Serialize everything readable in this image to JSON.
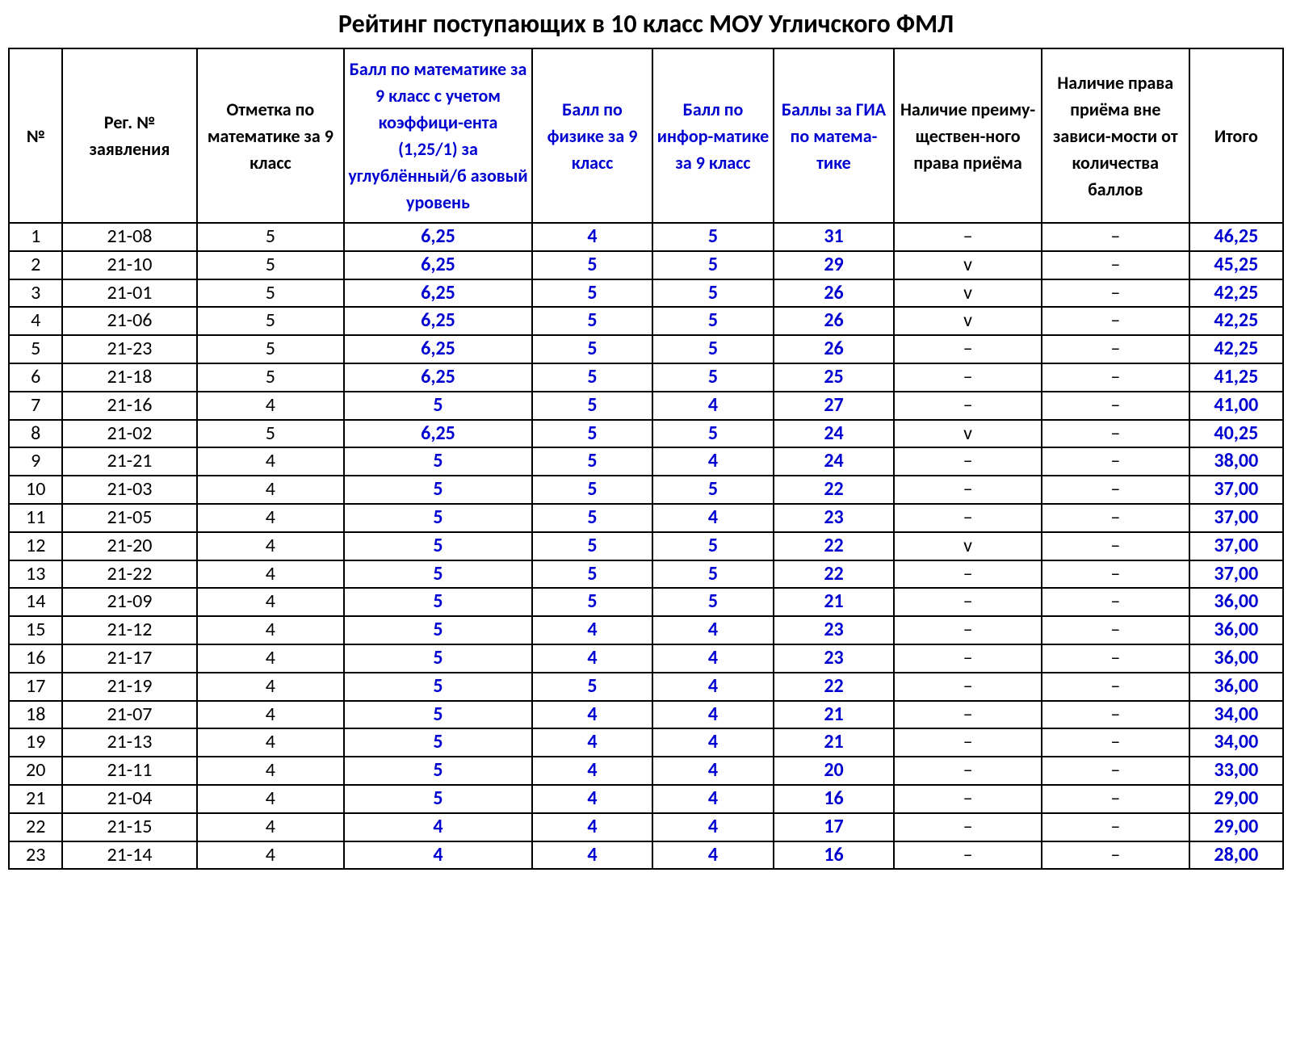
{
  "title": "Рейтинг поступающих в 10 класс МОУ Угличского ФМЛ",
  "colors": {
    "blue": "#0000d0",
    "black": "#000000",
    "border": "#000000",
    "background": "#ffffff"
  },
  "typography": {
    "title_fontsize": 32,
    "header_fontsize": 22,
    "cell_fontsize": 24,
    "font_family": "Calibri"
  },
  "columns": [
    {
      "key": "num",
      "label": "№",
      "color": "black",
      "width": "4%"
    },
    {
      "key": "reg",
      "label": "Рег. № заявления",
      "color": "black",
      "width": "10%"
    },
    {
      "key": "mark",
      "label": "Отметка по математике за 9 класс",
      "color": "black",
      "width": "11%"
    },
    {
      "key": "coef",
      "label": "Балл по математике за 9 класс с учетом коэффици-ента (1,25/1) за углублённый/б азовый уровень",
      "color": "blue",
      "width": "14%"
    },
    {
      "key": "phys",
      "label": "Балл по физике за 9 класс",
      "color": "blue",
      "width": "9%"
    },
    {
      "key": "inf",
      "label": "Балл по инфор-матике за 9 класс",
      "color": "blue",
      "width": "9%"
    },
    {
      "key": "gia",
      "label": "Баллы за ГИА по матема-тике",
      "color": "blue",
      "width": "9%"
    },
    {
      "key": "prio",
      "label": "Наличие преиму-ществен-ного права приёма",
      "color": "black",
      "width": "11%"
    },
    {
      "key": "right",
      "label": "Наличие права приёма вне зависи-мости от количества баллов",
      "color": "black",
      "width": "11%"
    },
    {
      "key": "total",
      "label": "Итого",
      "color": "black",
      "width": "7%"
    }
  ],
  "cell_styles": {
    "num": {
      "color": "black",
      "bold": false
    },
    "reg": {
      "color": "black",
      "bold": false
    },
    "mark": {
      "color": "black",
      "bold": false
    },
    "coef": {
      "color": "blue",
      "bold": true
    },
    "phys": {
      "color": "blue",
      "bold": true
    },
    "inf": {
      "color": "blue",
      "bold": true
    },
    "gia": {
      "color": "blue",
      "bold": true
    },
    "prio": {
      "color": "black",
      "bold": false
    },
    "right": {
      "color": "black",
      "bold": false
    },
    "total": {
      "color": "blue",
      "bold": true
    }
  },
  "rows": [
    {
      "num": "1",
      "reg": "21-08",
      "mark": "5",
      "coef": "6,25",
      "phys": "4",
      "inf": "5",
      "gia": "31",
      "prio": "–",
      "right": "–",
      "total": "46,25"
    },
    {
      "num": "2",
      "reg": "21-10",
      "mark": "5",
      "coef": "6,25",
      "phys": "5",
      "inf": "5",
      "gia": "29",
      "prio": "v",
      "right": "–",
      "total": "45,25"
    },
    {
      "num": "3",
      "reg": "21-01",
      "mark": "5",
      "coef": "6,25",
      "phys": "5",
      "inf": "5",
      "gia": "26",
      "prio": "v",
      "right": "–",
      "total": "42,25"
    },
    {
      "num": "4",
      "reg": "21-06",
      "mark": "5",
      "coef": "6,25",
      "phys": "5",
      "inf": "5",
      "gia": "26",
      "prio": "v",
      "right": "–",
      "total": "42,25"
    },
    {
      "num": "5",
      "reg": "21-23",
      "mark": "5",
      "coef": "6,25",
      "phys": "5",
      "inf": "5",
      "gia": "26",
      "prio": "–",
      "right": "–",
      "total": "42,25"
    },
    {
      "num": "6",
      "reg": "21-18",
      "mark": "5",
      "coef": "6,25",
      "phys": "5",
      "inf": "5",
      "gia": "25",
      "prio": "–",
      "right": "–",
      "total": "41,25"
    },
    {
      "num": "7",
      "reg": "21-16",
      "mark": "4",
      "coef": "5",
      "phys": "5",
      "inf": "4",
      "gia": "27",
      "prio": "–",
      "right": "–",
      "total": "41,00"
    },
    {
      "num": "8",
      "reg": "21-02",
      "mark": "5",
      "coef": "6,25",
      "phys": "5",
      "inf": "5",
      "gia": "24",
      "prio": "v",
      "right": "–",
      "total": "40,25"
    },
    {
      "num": "9",
      "reg": "21-21",
      "mark": "4",
      "coef": "5",
      "phys": "5",
      "inf": "4",
      "gia": "24",
      "prio": "–",
      "right": "–",
      "total": "38,00"
    },
    {
      "num": "10",
      "reg": "21-03",
      "mark": "4",
      "coef": "5",
      "phys": "5",
      "inf": "5",
      "gia": "22",
      "prio": "–",
      "right": "–",
      "total": "37,00"
    },
    {
      "num": "11",
      "reg": "21-05",
      "mark": "4",
      "coef": "5",
      "phys": "5",
      "inf": "4",
      "gia": "23",
      "prio": "–",
      "right": "–",
      "total": "37,00"
    },
    {
      "num": "12",
      "reg": "21-20",
      "mark": "4",
      "coef": "5",
      "phys": "5",
      "inf": "5",
      "gia": "22",
      "prio": "v",
      "right": "–",
      "total": "37,00"
    },
    {
      "num": "13",
      "reg": "21-22",
      "mark": "4",
      "coef": "5",
      "phys": "5",
      "inf": "5",
      "gia": "22",
      "prio": "–",
      "right": "–",
      "total": "37,00"
    },
    {
      "num": "14",
      "reg": "21-09",
      "mark": "4",
      "coef": "5",
      "phys": "5",
      "inf": "5",
      "gia": "21",
      "prio": "–",
      "right": "–",
      "total": "36,00"
    },
    {
      "num": "15",
      "reg": "21-12",
      "mark": "4",
      "coef": "5",
      "phys": "4",
      "inf": "4",
      "gia": "23",
      "prio": "–",
      "right": "–",
      "total": "36,00"
    },
    {
      "num": "16",
      "reg": "21-17",
      "mark": "4",
      "coef": "5",
      "phys": "4",
      "inf": "4",
      "gia": "23",
      "prio": "–",
      "right": "–",
      "total": "36,00"
    },
    {
      "num": "17",
      "reg": "21-19",
      "mark": "4",
      "coef": "5",
      "phys": "5",
      "inf": "4",
      "gia": "22",
      "prio": "–",
      "right": "–",
      "total": "36,00"
    },
    {
      "num": "18",
      "reg": "21-07",
      "mark": "4",
      "coef": "5",
      "phys": "4",
      "inf": "4",
      "gia": "21",
      "prio": "–",
      "right": "–",
      "total": "34,00"
    },
    {
      "num": "19",
      "reg": "21-13",
      "mark": "4",
      "coef": "5",
      "phys": "4",
      "inf": "4",
      "gia": "21",
      "prio": "–",
      "right": "–",
      "total": "34,00"
    },
    {
      "num": "20",
      "reg": "21-11",
      "mark": "4",
      "coef": "5",
      "phys": "4",
      "inf": "4",
      "gia": "20",
      "prio": "–",
      "right": "–",
      "total": "33,00"
    },
    {
      "num": "21",
      "reg": "21-04",
      "mark": "4",
      "coef": "5",
      "phys": "4",
      "inf": "4",
      "gia": "16",
      "prio": "–",
      "right": "–",
      "total": "29,00"
    },
    {
      "num": "22",
      "reg": "21-15",
      "mark": "4",
      "coef": "4",
      "phys": "4",
      "inf": "4",
      "gia": "17",
      "prio": "–",
      "right": "–",
      "total": "29,00"
    },
    {
      "num": "23",
      "reg": "21-14",
      "mark": "4",
      "coef": "4",
      "phys": "4",
      "inf": "4",
      "gia": "16",
      "prio": "–",
      "right": "–",
      "total": "28,00"
    }
  ]
}
